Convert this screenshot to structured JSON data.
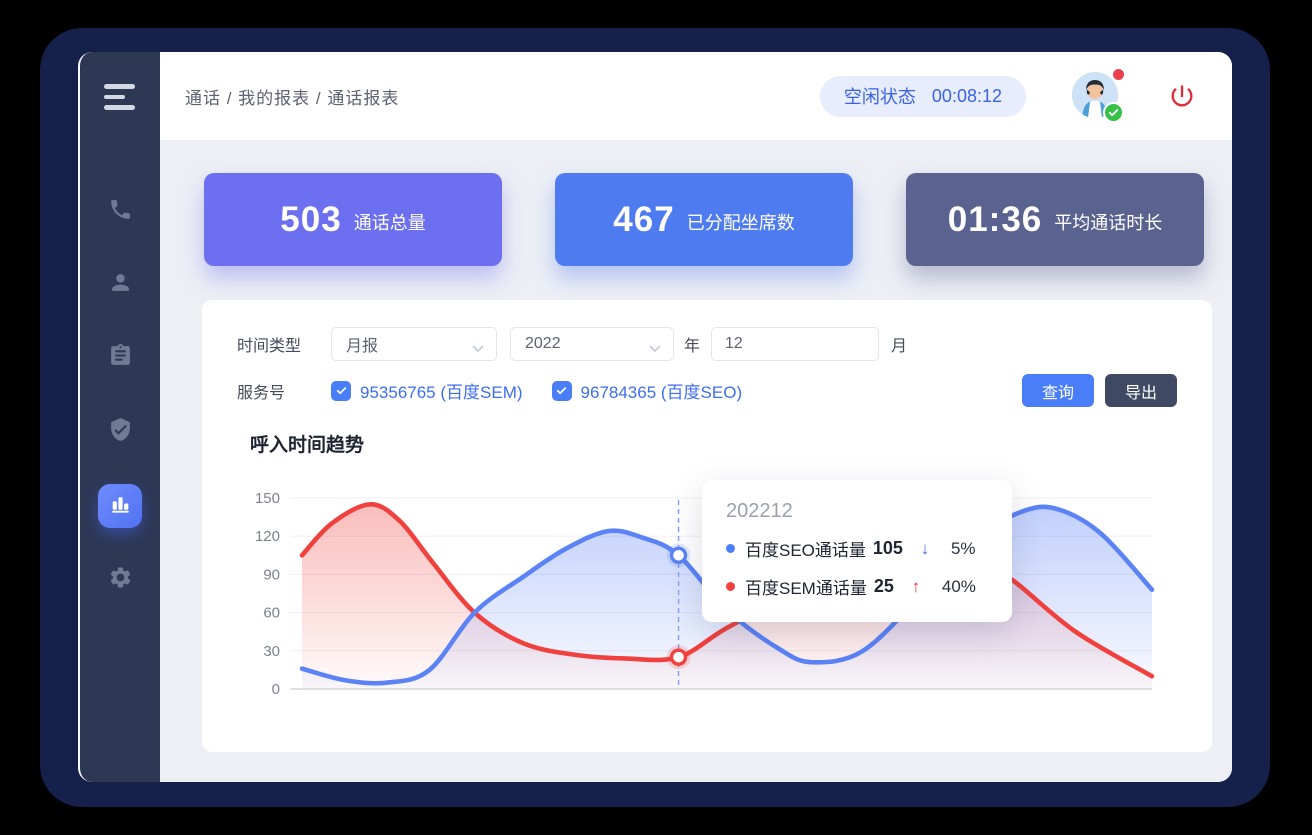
{
  "header": {
    "breadcrumb": "通话 / 我的报表 / 通话报表",
    "status_label": "空闲状态",
    "status_time": "00:08:12"
  },
  "sidebar": {
    "items": [
      {
        "icon": "phone-icon",
        "active": false
      },
      {
        "icon": "user-icon",
        "active": false
      },
      {
        "icon": "clipboard-icon",
        "active": false
      },
      {
        "icon": "shield-check-icon",
        "active": false
      },
      {
        "icon": "bar-chart-icon",
        "active": true
      },
      {
        "icon": "gear-icon",
        "active": false
      }
    ]
  },
  "stats": {
    "cards": [
      {
        "value": "503",
        "label": "通话总量",
        "color": "#6b6ff0"
      },
      {
        "value": "467",
        "label": "已分配坐席数",
        "color": "#4f7bf0"
      },
      {
        "value": "01:36",
        "label": "平均通话时长",
        "color": "#5a6390"
      }
    ]
  },
  "filters": {
    "time_type_label": "时间类型",
    "time_type_value": "月报",
    "year_value": "2022",
    "year_suffix": "年",
    "month_value": "12",
    "month_suffix": "月",
    "service_label": "服务号",
    "services": [
      {
        "label": "95356765 (百度SEM)",
        "checked": true
      },
      {
        "label": "96784365 (百度SEO)",
        "checked": true
      }
    ],
    "query_button": "查询",
    "export_button": "导出"
  },
  "tooltip": {
    "title": "202212",
    "rows": [
      {
        "dot_color": "#4a7df8",
        "label": "百度SEO通话量",
        "value": "105",
        "arrow": "↓",
        "arrow_color": "#4a6cf0",
        "percent": "5%"
      },
      {
        "dot_color": "#f0413e",
        "label": "百度SEM通话量",
        "value": "25",
        "arrow": "↑",
        "arrow_color": "#e6353c",
        "percent": "40%"
      }
    ]
  },
  "chart_data": {
    "type": "area",
    "title": "呼入时间趋势",
    "xlabel": "",
    "ylabel": "",
    "ylim": [
      0,
      150
    ],
    "yticks": [
      0,
      30,
      60,
      90,
      120,
      150
    ],
    "grid": true,
    "legend_position": "none (values shown in hover tooltip)",
    "x_axis_note": "monthly trend for 2022, x tick labels not shown; hovered month 202212",
    "hover": {
      "x_label": "202212",
      "x_fraction": 0.443,
      "values": {
        "百度SEO通话量": 105,
        "百度SEM通话量": 25
      },
      "changes": {
        "百度SEO通话量": "-5%",
        "百度SEM通话量": "+40%"
      }
    },
    "series": [
      {
        "name": "百度SEM通话量",
        "color": "#f0413e",
        "points": [
          [
            0,
            105
          ],
          [
            0.035,
            130
          ],
          [
            0.08,
            145
          ],
          [
            0.115,
            132
          ],
          [
            0.153,
            100
          ],
          [
            0.203,
            60
          ],
          [
            0.26,
            36
          ],
          [
            0.32,
            27
          ],
          [
            0.38,
            24
          ],
          [
            0.443,
            25
          ],
          [
            0.5,
            48
          ],
          [
            0.58,
            75
          ],
          [
            0.66,
            95
          ],
          [
            0.74,
            103
          ],
          [
            0.8,
            97
          ],
          [
            0.835,
            86
          ],
          [
            0.91,
            45
          ],
          [
            1,
            10
          ]
        ]
      },
      {
        "name": "百度SEO通话量",
        "color": "#5b83f5",
        "points": [
          [
            0,
            16
          ],
          [
            0.05,
            7
          ],
          [
            0.1,
            5
          ],
          [
            0.15,
            15
          ],
          [
            0.203,
            60
          ],
          [
            0.26,
            88
          ],
          [
            0.31,
            110
          ],
          [
            0.36,
            124
          ],
          [
            0.4,
            119
          ],
          [
            0.443,
            105
          ],
          [
            0.5,
            62
          ],
          [
            0.56,
            32
          ],
          [
            0.6,
            21
          ],
          [
            0.66,
            30
          ],
          [
            0.73,
            75
          ],
          [
            0.79,
            118
          ],
          [
            0.85,
            140
          ],
          [
            0.89,
            141
          ],
          [
            0.94,
            122
          ],
          [
            1,
            78
          ]
        ]
      }
    ]
  }
}
